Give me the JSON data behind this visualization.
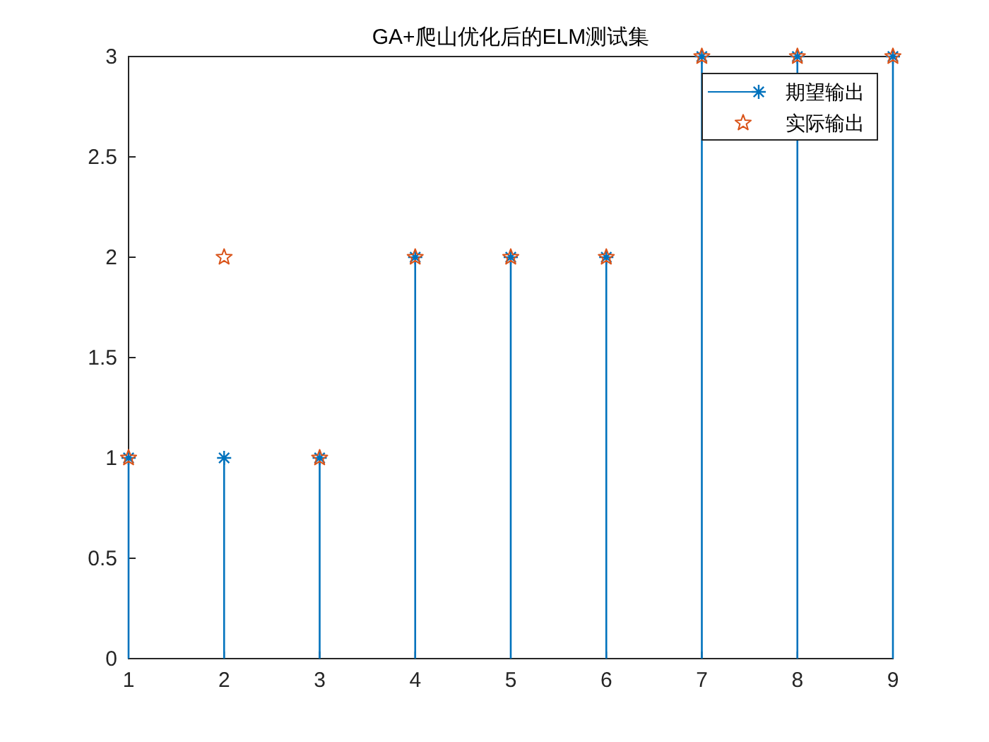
{
  "chart_data": {
    "type": "lollipop",
    "title": "GA+爬山优化后的ELM测试集",
    "x": [
      1,
      2,
      3,
      4,
      5,
      6,
      7,
      8,
      9
    ],
    "series": [
      {
        "name": "期望输出",
        "color": "#0072bd",
        "marker": "cross",
        "values": [
          1,
          1,
          1,
          2,
          2,
          2,
          3,
          3,
          3
        ]
      },
      {
        "name": "实际输出",
        "type": "scatter",
        "color": "#d95319",
        "marker": "star",
        "values": [
          1,
          2,
          1,
          2,
          2,
          2,
          3,
          3,
          3
        ]
      }
    ],
    "xlim": [
      1,
      9
    ],
    "xticks": [
      1,
      2,
      3,
      4,
      5,
      6,
      7,
      8,
      9
    ],
    "ylim": [
      0,
      3
    ],
    "yticks": [
      0,
      0.5,
      1,
      1.5,
      2,
      2.5,
      3
    ],
    "legend": "top right"
  }
}
